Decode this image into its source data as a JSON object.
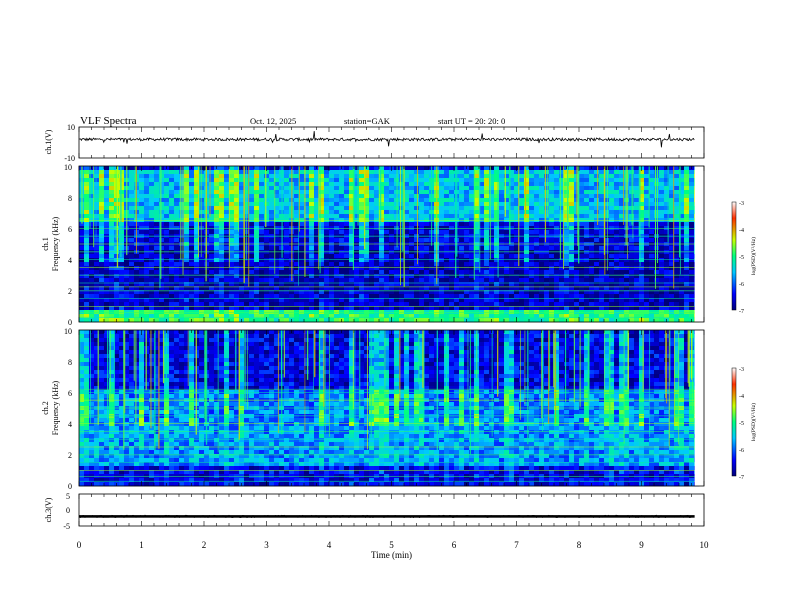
{
  "header": {
    "title": "VLF  Spectra",
    "date": "Oct. 12, 2025",
    "station": "station=GAK",
    "start": "start  UT  =    20: 20: 0"
  },
  "chart_data": [
    {
      "type": "line",
      "panel": "ch1-waveform",
      "ylabel": "ch.1(V)",
      "ylim": [
        -10,
        10
      ],
      "yticks": [
        "10",
        "-10"
      ],
      "series": [
        {
          "name": "ch.1",
          "baseline": 2,
          "noise_amplitude": 1.2
        }
      ]
    },
    {
      "type": "heatmap",
      "panel": "ch1-spectrogram",
      "ylabel": "ch.1",
      "ylabel2": "Frequency  (kHz)",
      "ylim": [
        0,
        10
      ],
      "yticks": [
        "0",
        "2",
        "4",
        "6",
        "8",
        "10"
      ],
      "xlim": [
        0,
        10
      ],
      "colorbar": {
        "label": "log(PSD)(V²/Hz)",
        "range": [
          -7,
          -3
        ],
        "ticks": [
          "-3",
          "-4",
          "-5",
          "-6",
          "-7"
        ]
      },
      "bands": [
        {
          "from": 0,
          "to": 1,
          "level": 0.5
        },
        {
          "from": 1,
          "to": 4.8,
          "level": 0.08
        },
        {
          "from": 4.8,
          "to": 6.5,
          "level": 0.12
        },
        {
          "from": 6.5,
          "to": 10,
          "level": 0.35
        }
      ],
      "line_freqs_khz": [
        0.3,
        0.6,
        1.0,
        1.5,
        2.0,
        2.25,
        2.5,
        3.0,
        3.5,
        4.0,
        4.5,
        5.0,
        5.5,
        6.0,
        6.5
      ]
    },
    {
      "type": "heatmap",
      "panel": "ch2-spectrogram",
      "ylabel": "ch.2",
      "ylabel2": "Frequency  (kHz)",
      "ylim": [
        0,
        10
      ],
      "yticks": [
        "0",
        "2",
        "4",
        "6",
        "8",
        "10"
      ],
      "xlim": [
        0,
        10
      ],
      "colorbar": {
        "label": "log(PSD)(V²/Hz)",
        "range": [
          -7,
          -3
        ],
        "ticks": [
          "-3",
          "-4",
          "-5",
          "-6",
          "-7"
        ]
      },
      "bands": [
        {
          "from": 0,
          "to": 1.5,
          "level": 0.12
        },
        {
          "from": 1.5,
          "to": 4.5,
          "level": 0.3
        },
        {
          "from": 4.5,
          "to": 6.3,
          "level": 0.28
        },
        {
          "from": 6.3,
          "to": 10,
          "level": 0.12
        }
      ],
      "line_freqs_khz": [
        0.3,
        0.6,
        1.0,
        1.5,
        2.0,
        2.5,
        3.0,
        3.5,
        4.0,
        4.5,
        5.0,
        5.5,
        6.0,
        6.2
      ]
    },
    {
      "type": "line",
      "panel": "ch3-waveform",
      "ylabel": "ch.3(V)",
      "ylim": [
        -5,
        5
      ],
      "yticks": [
        "5",
        "0",
        "-5"
      ],
      "series": [
        {
          "name": "ch.3",
          "baseline": -2,
          "noise_amplitude": 0.4
        }
      ]
    }
  ],
  "xaxis": {
    "label": "Time  (min)",
    "range": [
      0,
      10
    ],
    "data_end": 9.85,
    "ticks": [
      "0",
      "1",
      "2",
      "3",
      "4",
      "5",
      "6",
      "7",
      "8",
      "9",
      "10"
    ]
  }
}
